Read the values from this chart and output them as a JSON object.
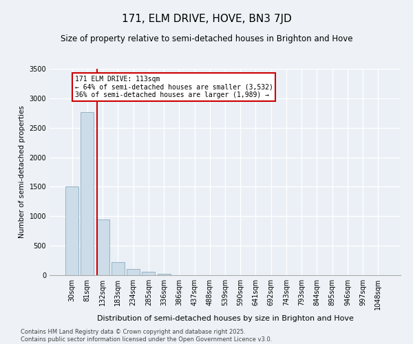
{
  "title": "171, ELM DRIVE, HOVE, BN3 7JD",
  "subtitle": "Size of property relative to semi-detached houses in Brighton and Hove",
  "xlabel": "Distribution of semi-detached houses by size in Brighton and Hove",
  "ylabel": "Number of semi-detached properties",
  "categories": [
    "30sqm",
    "81sqm",
    "132sqm",
    "183sqm",
    "234sqm",
    "285sqm",
    "336sqm",
    "386sqm",
    "437sqm",
    "488sqm",
    "539sqm",
    "590sqm",
    "641sqm",
    "692sqm",
    "743sqm",
    "793sqm",
    "844sqm",
    "895sqm",
    "946sqm",
    "997sqm",
    "1048sqm"
  ],
  "values": [
    1510,
    2760,
    950,
    220,
    110,
    58,
    28,
    0,
    0,
    0,
    0,
    0,
    0,
    0,
    0,
    0,
    0,
    0,
    0,
    0,
    0
  ],
  "bar_color": "#ccdce8",
  "bar_edge_color": "#8aaac0",
  "vline_color": "#cc0000",
  "annotation_line1": "171 ELM DRIVE: 113sqm",
  "annotation_line2": "← 64% of semi-detached houses are smaller (3,532)",
  "annotation_line3": "36% of semi-detached houses are larger (1,989) →",
  "annotation_box_color": "#cc0000",
  "ylim": [
    0,
    3500
  ],
  "yticks": [
    0,
    500,
    1000,
    1500,
    2000,
    2500,
    3000,
    3500
  ],
  "footer_line1": "Contains HM Land Registry data © Crown copyright and database right 2025.",
  "footer_line2": "Contains public sector information licensed under the Open Government Licence v3.0.",
  "bg_color": "#eef2f6",
  "plot_bg_color": "#eaf0f6",
  "grid_color": "#ffffff",
  "title_fontsize": 11,
  "subtitle_fontsize": 8.5,
  "ylabel_fontsize": 7.5,
  "xlabel_fontsize": 8,
  "tick_fontsize": 7,
  "footer_fontsize": 6,
  "annot_fontsize": 7
}
